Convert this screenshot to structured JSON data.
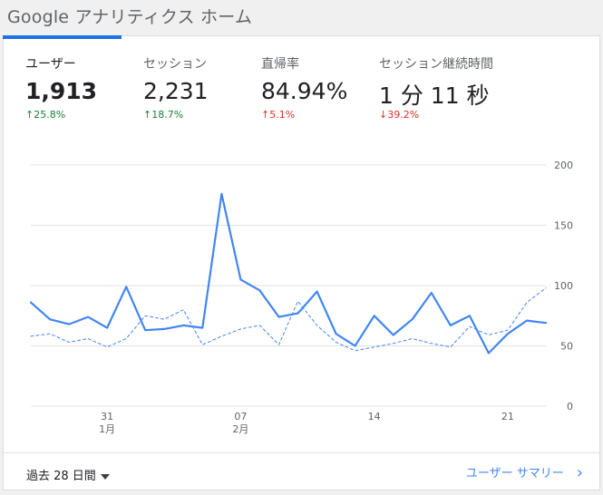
{
  "header": {
    "title": "Google アナリティクス ホーム"
  },
  "metrics": [
    {
      "label": "ユーザー",
      "value": "1,913",
      "change": "↑25.8%",
      "change_color": "#188038"
    },
    {
      "label": "セッション",
      "value": "2,231",
      "change": "↑18.7%",
      "change_color": "#188038"
    },
    {
      "label": "直帰率",
      "value": "84.94%",
      "change": "↑5.1%",
      "change_color": "#d93025"
    },
    {
      "label": "セッション継続時間",
      "value": "1 分 11 秒",
      "change": "↓39.2%",
      "change_color": "#d93025"
    }
  ],
  "footer": {
    "range_label": "過去 28 日間",
    "summary_link": "ユーザー サマリー"
  },
  "colors": {
    "accent": "#1a73e8",
    "current_series": "#4285f4",
    "positive": "#188038",
    "negative": "#d93025"
  },
  "icons": {
    "dropdown": "caret-down-icon",
    "link": "chevron-right-icon"
  },
  "chart_data": {
    "type": "line",
    "x_ticks": [
      {
        "day": 4,
        "label": "31",
        "sublabel": "1月"
      },
      {
        "day": 11,
        "label": "07",
        "sublabel": "2月"
      },
      {
        "day": 18,
        "label": "14",
        "sublabel": ""
      },
      {
        "day": 25,
        "label": "21",
        "sublabel": ""
      }
    ],
    "y_ticks": [
      0,
      50,
      100,
      150,
      200
    ],
    "ylim": [
      0,
      200
    ],
    "grid": true,
    "series": [
      {
        "style": "solid",
        "values": [
          86,
          72,
          68,
          74,
          65,
          99,
          63,
          64,
          67,
          65,
          176,
          105,
          96,
          74,
          77,
          95,
          60,
          50,
          75,
          59,
          72,
          94,
          67,
          75,
          44,
          60,
          71,
          69
        ]
      },
      {
        "style": "dashed",
        "values": [
          58,
          60,
          53,
          56,
          49,
          56,
          75,
          72,
          80,
          51,
          58,
          64,
          67,
          51,
          87,
          67,
          53,
          46,
          49,
          52,
          56,
          52,
          49,
          66,
          59,
          63,
          86,
          98
        ]
      }
    ]
  }
}
